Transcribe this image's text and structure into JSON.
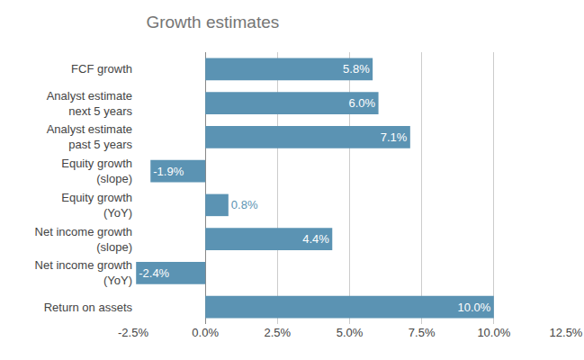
{
  "chart_data": {
    "type": "bar",
    "orientation": "horizontal",
    "title": "Growth estimates",
    "categories": [
      "FCF growth",
      "Analyst estimate\nnext 5 years",
      "Analyst estimate\npast 5 years",
      "Equity growth\n(slope)",
      "Equity growth\n(YoY)",
      "Net income growth\n(slope)",
      "Net income growth\n(YoY)",
      "Return on assets"
    ],
    "values": [
      5.8,
      6.0,
      7.1,
      -1.9,
      0.8,
      4.4,
      -2.4,
      10.0
    ],
    "value_labels": [
      "5.8%",
      "6.0%",
      "7.1%",
      "-1.9%",
      "0.8%",
      "4.4%",
      "-2.4%",
      "10.0%"
    ],
    "data_labels": true,
    "color": "#5b93b3",
    "xlim": [
      -2.5,
      12.5
    ],
    "xticks": [
      {
        "value": -2.5,
        "label": "-2.5%"
      },
      {
        "value": 0,
        "label": "0.0%"
      },
      {
        "value": 2.5,
        "label": "2.5%"
      },
      {
        "value": 5,
        "label": "5.0%"
      },
      {
        "value": 7.5,
        "label": "7.5%"
      },
      {
        "value": 10,
        "label": "10.0%"
      },
      {
        "value": 12.5,
        "label": "12.5%"
      }
    ],
    "grid": true
  }
}
